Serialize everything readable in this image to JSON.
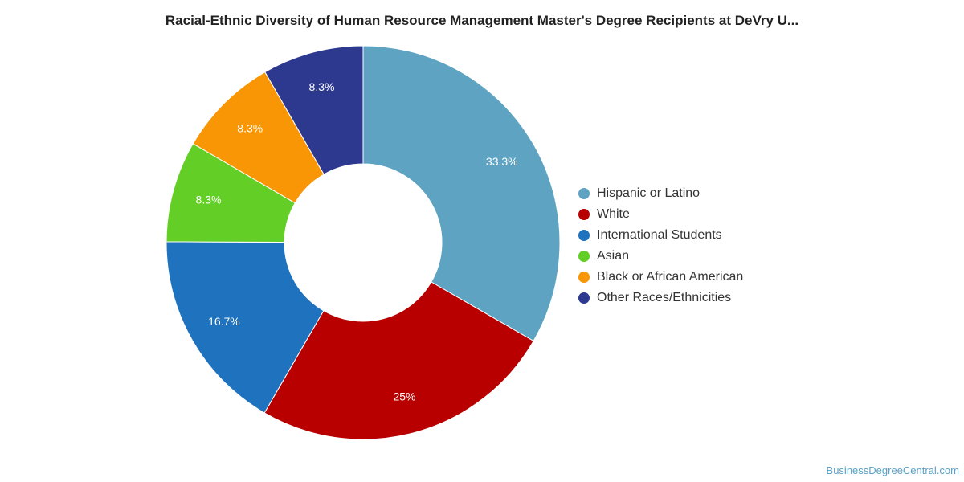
{
  "chart_data": {
    "type": "pie",
    "title": "Racial-Ethnic Diversity of Human Resource Management Master's Degree Recipients at DeVry U...",
    "donut": true,
    "legend_position": "right",
    "slices": [
      {
        "label": "Hispanic or Latino",
        "value": 33.3,
        "display": "33.3%",
        "color": "#5ea4c2"
      },
      {
        "label": "White",
        "value": 25,
        "display": "25%",
        "color": "#b80000"
      },
      {
        "label": "International Students",
        "value": 16.7,
        "display": "16.7%",
        "color": "#1f72be"
      },
      {
        "label": "Asian",
        "value": 8.3,
        "display": "8.3%",
        "color": "#63cf26"
      },
      {
        "label": "Black or African American",
        "value": 8.3,
        "display": "8.3%",
        "color": "#f89605"
      },
      {
        "label": "Other Races/Ethnicities",
        "value": 8.3,
        "display": "8.3%",
        "color": "#2d388f"
      }
    ]
  },
  "source": "BusinessDegreeCentral.com"
}
